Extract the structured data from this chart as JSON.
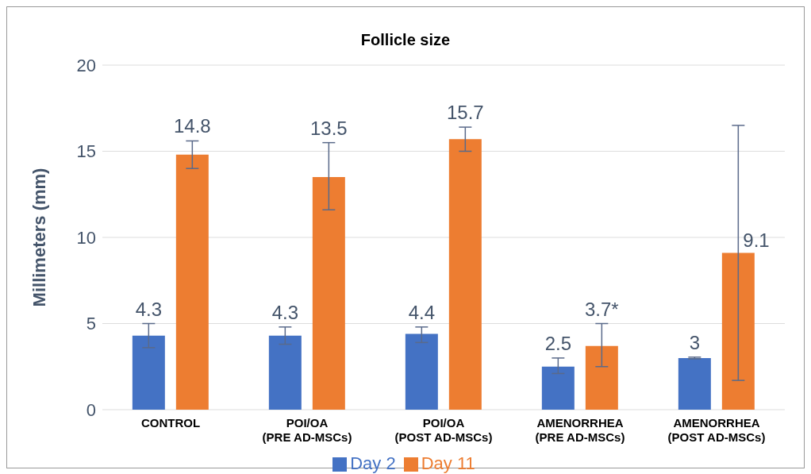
{
  "chart_data": {
    "type": "bar",
    "title": "Follicle size",
    "ylabel": "Millimeters (mm)",
    "categories": [
      "CONTROL",
      "POI/OA\n(PRE AD-MSCs)",
      "POI/OA\n(POST AD-MSCs)",
      "AMENORRHEA\n(PRE AD-MSCs)",
      "AMENORRHEA\n(POST AD-MSCs)"
    ],
    "series": [
      {
        "name": "Day 2",
        "color": "#4472c4",
        "values": [
          4.3,
          4.3,
          4.4,
          2.5,
          3
        ],
        "errors": [
          [
            3.6,
            5.0
          ],
          [
            3.8,
            4.8
          ],
          [
            3.9,
            4.8
          ],
          [
            2.1,
            3.0
          ],
          [
            2.95,
            3.05
          ]
        ],
        "value_labels": [
          "4.3",
          "4.3",
          "4.4",
          "2.5",
          "3"
        ]
      },
      {
        "name": "Day 11",
        "color": "#ed7d31",
        "values": [
          14.8,
          13.5,
          15.7,
          3.7,
          9.1
        ],
        "errors": [
          [
            14.0,
            15.6
          ],
          [
            11.6,
            15.5
          ],
          [
            15.0,
            16.4
          ],
          [
            2.5,
            5.0
          ],
          [
            1.7,
            16.5
          ]
        ],
        "value_labels": [
          "14.8",
          "13.5",
          "15.7",
          "3.7*",
          "9.1"
        ]
      }
    ],
    "ylim": [
      0,
      20
    ],
    "yticks": [
      0,
      5,
      10,
      15,
      20
    ],
    "grid": "y",
    "legend": "bottom"
  }
}
